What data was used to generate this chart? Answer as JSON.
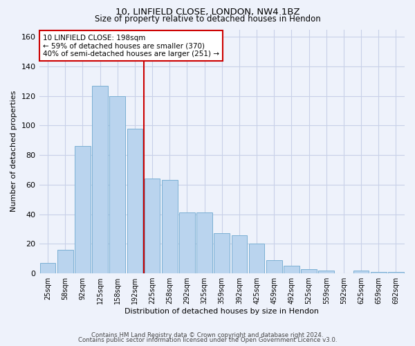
{
  "title1": "10, LINFIELD CLOSE, LONDON, NW4 1BZ",
  "title2": "Size of property relative to detached houses in Hendon",
  "xlabel": "Distribution of detached houses by size in Hendon",
  "ylabel": "Number of detached properties",
  "categories": [
    "25sqm",
    "58sqm",
    "92sqm",
    "125sqm",
    "158sqm",
    "192sqm",
    "225sqm",
    "258sqm",
    "292sqm",
    "325sqm",
    "359sqm",
    "392sqm",
    "425sqm",
    "459sqm",
    "492sqm",
    "525sqm",
    "559sqm",
    "592sqm",
    "625sqm",
    "659sqm",
    "692sqm"
  ],
  "values": [
    7,
    16,
    86,
    127,
    120,
    98,
    64,
    63,
    41,
    41,
    27,
    26,
    20,
    9,
    5,
    3,
    2,
    0,
    2,
    1,
    1
  ],
  "bar_color": "#bad4ee",
  "bar_edge_color": "#7aafd4",
  "vline_color": "#cc0000",
  "annotation_text": "10 LINFIELD CLOSE: 198sqm\n← 59% of detached houses are smaller (370)\n40% of semi-detached houses are larger (251) →",
  "annotation_box_color": "#ffffff",
  "annotation_box_edge_color": "#cc0000",
  "ylim": [
    0,
    165
  ],
  "yticks": [
    0,
    20,
    40,
    60,
    80,
    100,
    120,
    140,
    160
  ],
  "footer1": "Contains HM Land Registry data © Crown copyright and database right 2024.",
  "footer2": "Contains public sector information licensed under the Open Government Licence v3.0.",
  "bg_color": "#eef2fb",
  "grid_color": "#c8d0e8"
}
